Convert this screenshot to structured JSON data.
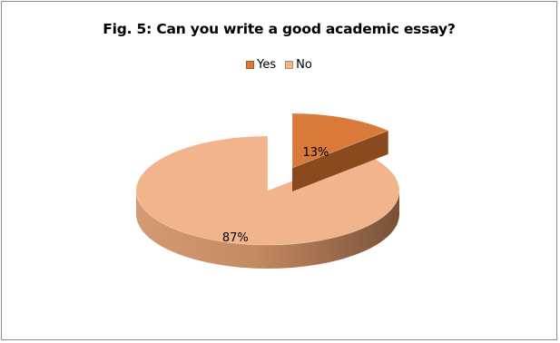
{
  "chart_data": {
    "type": "pie",
    "title": "Fig. 5: Can you write a good academic essay?",
    "categories": [
      "Yes",
      "No"
    ],
    "values": [
      13,
      87
    ],
    "data_labels": [
      "13%",
      "87%"
    ],
    "colors": [
      "#D9793A",
      "#F2B48C"
    ],
    "legend_position": "top",
    "legend": [
      {
        "label": "Yes",
        "color": "#D9793A"
      },
      {
        "label": "No",
        "color": "#F2B48C"
      }
    ]
  }
}
